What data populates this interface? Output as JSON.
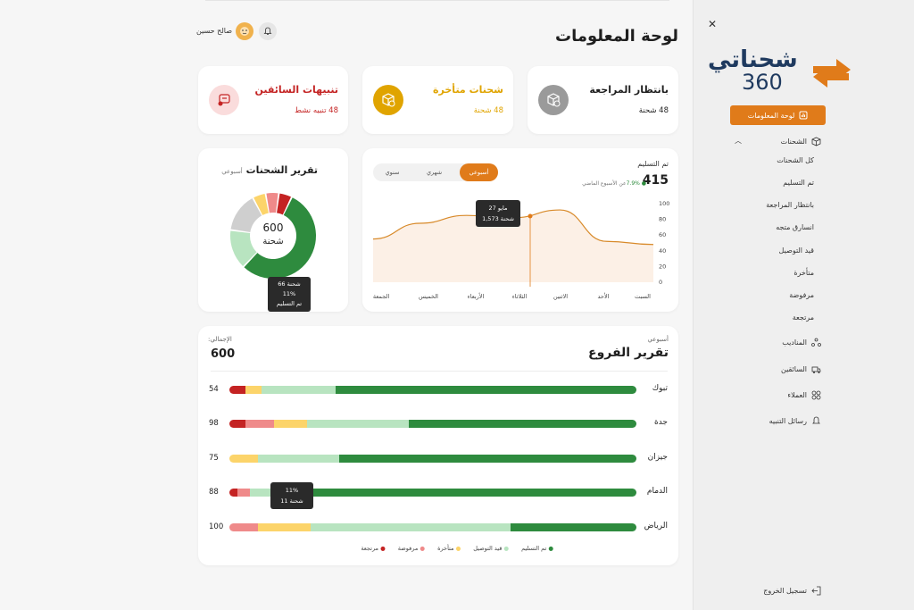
{
  "header": {
    "title": "لوحة المعلومات",
    "user_name": "صالح حسين"
  },
  "stats": [
    {
      "title": "بانتظار المراجعة",
      "sub": "48 شحنة",
      "color": "#1f1f1f",
      "sub_color": "#1f1f1f",
      "icon": "box-clock-icon"
    },
    {
      "title": "شحنات متأخرة",
      "sub": "48 شحنة",
      "color": "#e0a400",
      "sub_color": "#e0a400",
      "icon": "box-warning-icon"
    },
    {
      "title": "تنبيهات السائقين",
      "sub": "48 تنبيه نشط",
      "color": "#c42323",
      "sub_color": "#c42323",
      "icon": "chat-alert-icon"
    }
  ],
  "delivered": {
    "label": "تم التسليم",
    "value": "415",
    "change": "7.9%",
    "change_text": "عن الأسبوع الماضي",
    "tabs": [
      "أسبوعي",
      "شهري",
      "سنوي"
    ],
    "tooltip_date": "27 مايو",
    "tooltip_value": "1,573 شحنة",
    "y_ticks": [
      "100",
      "80",
      "60",
      "40",
      "20",
      "0"
    ],
    "days": [
      "السبت",
      "الأحد",
      "الاثنين",
      "الثلاثاء",
      "الأربعاء",
      "الخميس",
      "الجمعة"
    ]
  },
  "shipments_report": {
    "title": "تقرير الشحنات",
    "period": "أسبوعي",
    "center_value": "600",
    "center_label": "شحنة",
    "tooltip": [
      "66 شحنة",
      "11%",
      "تم التسليم"
    ]
  },
  "branches": {
    "period": "أسبوعي",
    "title": "تقرير الفروع",
    "total_label": "الإجمالي:",
    "total": "600",
    "rows": [
      {
        "name": "تبوك",
        "value": "54"
      },
      {
        "name": "جدة",
        "value": "98"
      },
      {
        "name": "جيزان",
        "value": "75"
      },
      {
        "name": "الدمام",
        "value": "88"
      },
      {
        "name": "الرياض",
        "value": "100"
      }
    ],
    "tooltip": [
      "11%",
      "11 شحنة"
    ],
    "legend": [
      "تم التسليم",
      "قيد التوصيل",
      "متأخرة",
      "مرفوضة",
      "مرتجعة"
    ]
  },
  "sidebar": {
    "logo_text": "شحناتي",
    "logo_num": "360",
    "active": "لوحة المعلومات",
    "shipments": "الشحنات",
    "sub_items": [
      "كل الشحنات",
      "تم التسليم",
      "بانتظار المراجعة",
      "انسارق متجه",
      "قيد التوصيل",
      "متأخرة",
      "مرفوضة",
      "مرتجعة"
    ],
    "items": [
      "المناديب",
      "السائقين",
      "العملاء",
      "رسائل التنبيه"
    ],
    "logout": "تسجيل الخروج"
  },
  "colors": {
    "orange": "#e07b1a",
    "dark_green": "#2e8b3e",
    "light_green": "#b8e4c0",
    "yellow": "#fcd46a",
    "pink": "#ef8a8a",
    "red": "#c42323",
    "gray": "#cfcfcf"
  },
  "chart_data": [
    {
      "type": "area",
      "title": "تم التسليم",
      "x": [
        "الجمعة",
        "الخميس",
        "الأربعاء",
        "الثلاثاء",
        "الاثنين",
        "الأحد",
        "السبت"
      ],
      "values": [
        55,
        75,
        85,
        82,
        92,
        52,
        48
      ],
      "ylim": [
        0,
        100
      ]
    },
    {
      "type": "pie",
      "title": "تقرير الشحنات",
      "labels": [
        "تم التسليم",
        "قيد التوصيل",
        "متأخرة",
        "مرفوضة",
        "مرتجعة",
        "other"
      ],
      "values": [
        55,
        15,
        5,
        5,
        5,
        15
      ]
    },
    {
      "type": "bar",
      "title": "تقرير الفروع",
      "categories": [
        "تبوك",
        "جدة",
        "جيزان",
        "الدمام",
        "الرياض"
      ],
      "series": [
        {
          "name": "مرتجعة",
          "values": [
            4,
            4,
            0,
            2,
            0
          ]
        },
        {
          "name": "مرفوضة",
          "values": [
            0,
            7,
            0,
            3,
            7
          ]
        },
        {
          "name": "متأخرة",
          "values": [
            4,
            8,
            7,
            0,
            13
          ]
        },
        {
          "name": "قيد التوصيل",
          "values": [
            18,
            25,
            20,
            5,
            49
          ]
        },
        {
          "name": "تم التسليم",
          "values": [
            74,
            56,
            73,
            90,
            31
          ]
        }
      ]
    }
  ]
}
